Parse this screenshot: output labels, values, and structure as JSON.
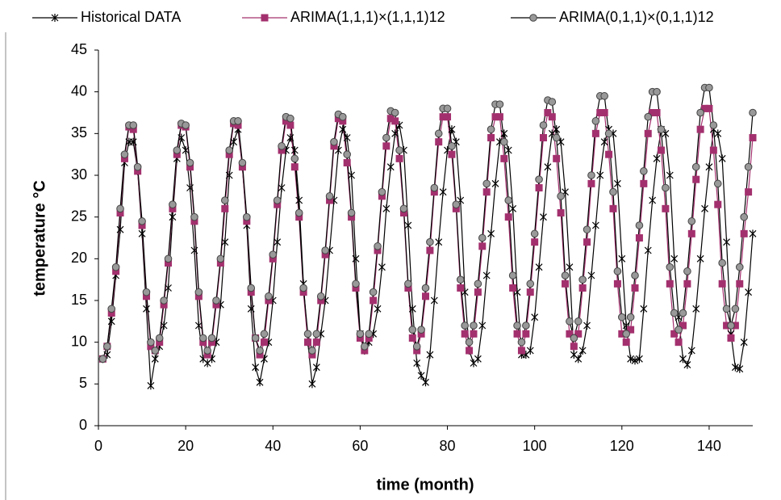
{
  "chart_data": {
    "type": "line",
    "xlabel": "time (month)",
    "ylabel": "temperature °C",
    "xlim": [
      0,
      150
    ],
    "xticks": [
      0,
      20,
      40,
      60,
      80,
      100,
      120,
      140
    ],
    "ylim": [
      0,
      45
    ],
    "yticks": [
      0,
      5,
      10,
      15,
      20,
      25,
      30,
      35,
      40,
      45
    ],
    "grid": false,
    "legend": "top",
    "x": [
      1,
      2,
      3,
      4,
      5,
      6,
      7,
      8,
      9,
      10,
      11,
      12,
      13,
      14,
      15,
      16,
      17,
      18,
      19,
      20,
      21,
      22,
      23,
      24,
      25,
      26,
      27,
      28,
      29,
      30,
      31,
      32,
      33,
      34,
      35,
      36,
      37,
      38,
      39,
      40,
      41,
      42,
      43,
      44,
      45,
      46,
      47,
      48,
      49,
      50,
      51,
      52,
      53,
      54,
      55,
      56,
      57,
      58,
      59,
      60,
      61,
      62,
      63,
      64,
      65,
      66,
      67,
      68,
      69,
      70,
      71,
      72,
      73,
      74,
      75,
      76,
      77,
      78,
      79,
      80,
      81,
      82,
      83,
      84,
      85,
      86,
      87,
      88,
      89,
      90,
      91,
      92,
      93,
      94,
      95,
      96,
      97,
      98,
      99,
      100,
      101,
      102,
      103,
      104,
      105,
      106,
      107,
      108,
      109,
      110,
      111,
      112,
      113,
      114,
      115,
      116,
      117,
      118,
      119,
      120,
      121,
      122,
      123,
      124,
      125,
      126,
      127,
      128,
      129,
      130,
      131,
      132,
      133,
      134,
      135,
      136,
      137,
      138,
      139,
      140,
      141,
      142,
      143,
      144,
      145,
      146,
      147,
      148,
      149,
      150
    ],
    "series": [
      {
        "name": "Historical DATA",
        "color": "#000000",
        "marker": "asterisk",
        "values": [
          8,
          8.5,
          12.5,
          18,
          23.5,
          31.5,
          34,
          34,
          30.5,
          23,
          14,
          4.8,
          8,
          9.5,
          12,
          16.5,
          25,
          32,
          34.5,
          33,
          28.5,
          21,
          12,
          8,
          7.5,
          8,
          10,
          14.5,
          22,
          30,
          34,
          35.5,
          31,
          24,
          14,
          7,
          5.2,
          8,
          10,
          15,
          22,
          28.5,
          33,
          34.5,
          33,
          27,
          17,
          10,
          5,
          7,
          11,
          15,
          21,
          27,
          33,
          35.5,
          34.5,
          30,
          20,
          11,
          9,
          10,
          11,
          14,
          19,
          26,
          31,
          35,
          36,
          33,
          24,
          14,
          7.5,
          6,
          5.2,
          8.5,
          15,
          22,
          28,
          33,
          35.5,
          34,
          27,
          16,
          9,
          7.5,
          8,
          12,
          18,
          23,
          29,
          34,
          35,
          33,
          26,
          16,
          8.5,
          8.5,
          9,
          13,
          19,
          25,
          31,
          35,
          35.5,
          34,
          28,
          19,
          8.5,
          8,
          9,
          12,
          18,
          24,
          30,
          34,
          35.5,
          35,
          29,
          20,
          12,
          8,
          7.8,
          8,
          14,
          21,
          27,
          32,
          35.5,
          35,
          30,
          20,
          13,
          8,
          7.3,
          9,
          14,
          20,
          26,
          31,
          35.5,
          35,
          32,
          22,
          11,
          7,
          6.8,
          10,
          16,
          23
        ]
      },
      {
        "name": "ARIMA(1,1,1)×(1,1,1)12",
        "color": "#a3306e",
        "marker": "square",
        "values": [
          8,
          9.5,
          13.5,
          18.5,
          25.5,
          32,
          35.8,
          35.5,
          30.5,
          24,
          15.5,
          9.5,
          9,
          10,
          14.5,
          19.5,
          26,
          32.5,
          36,
          35.8,
          31,
          24.5,
          15.5,
          10,
          8.5,
          10,
          14.5,
          19.5,
          26,
          32.5,
          36.2,
          36,
          31,
          24.5,
          16,
          10.5,
          8.5,
          10,
          15,
          20,
          26.5,
          33,
          36.5,
          36,
          31,
          25,
          16,
          10,
          8.5,
          10,
          15,
          20.5,
          27,
          33.5,
          36.8,
          36.5,
          31.5,
          25,
          16.5,
          10.5,
          9,
          10.5,
          15,
          21,
          27.5,
          33.5,
          36.8,
          36.5,
          32,
          25.5,
          16.5,
          10.5,
          9,
          11,
          15.5,
          21,
          28,
          34,
          37,
          37,
          32.5,
          26,
          16.5,
          11,
          9,
          11,
          16,
          21.5,
          28,
          34.5,
          37,
          37,
          32,
          25,
          16.5,
          11,
          9,
          11,
          16,
          22,
          28.5,
          34.5,
          37.5,
          37,
          32,
          25.5,
          17,
          11,
          9.5,
          11,
          16.5,
          22,
          29,
          35,
          37.5,
          37.5,
          32.5,
          26,
          17,
          11,
          10,
          11.5,
          16.5,
          22.5,
          29,
          35,
          37.5,
          37.5,
          33,
          26,
          17,
          11,
          10,
          12,
          17,
          23,
          29.5,
          35.5,
          38,
          38,
          33,
          26.5,
          17,
          12,
          10.5,
          12,
          17,
          23,
          28,
          34.5
        ]
      },
      {
        "name": "ARIMA(0,1,1)×(0,1,1)12",
        "color": "#999999",
        "marker": "circle",
        "values": [
          8,
          9.5,
          14,
          19,
          26,
          32.5,
          36,
          36,
          31,
          24.5,
          16,
          10,
          9,
          10.5,
          15,
          20,
          26.5,
          33,
          36.2,
          36,
          31.5,
          25,
          16,
          10.5,
          9,
          10.5,
          15,
          20,
          27,
          33,
          36.5,
          36.5,
          31.5,
          25,
          16.5,
          10.5,
          9,
          11,
          15.5,
          20.5,
          27,
          33.5,
          37,
          36.8,
          32,
          25.5,
          16.5,
          11,
          9,
          11,
          15.5,
          21,
          27.5,
          34,
          37.3,
          37,
          32.5,
          25.5,
          17,
          11,
          9.5,
          11,
          16,
          21.5,
          28,
          34.5,
          37.7,
          37.5,
          33,
          26,
          17,
          11.5,
          9.5,
          11.5,
          16.5,
          22,
          28.5,
          35,
          38,
          38,
          33.5,
          26.5,
          17.5,
          12,
          10,
          12,
          17,
          22.5,
          29,
          35.5,
          38.5,
          38.5,
          34,
          27,
          18,
          12,
          10,
          12,
          17,
          23,
          29.5,
          36,
          39,
          38.8,
          34.5,
          27.5,
          18,
          12.5,
          10.5,
          12.5,
          17.5,
          23.5,
          30,
          36.5,
          39.5,
          39.5,
          35,
          28,
          18.5,
          13,
          11,
          13,
          18,
          24,
          30.5,
          37,
          40,
          40,
          35.5,
          28.5,
          19,
          13.5,
          11.5,
          13.5,
          18.5,
          24.5,
          31,
          37.5,
          40.5,
          40.5,
          36,
          29,
          19.5,
          14,
          12,
          14,
          19,
          25,
          31,
          37.5
        ]
      }
    ]
  }
}
